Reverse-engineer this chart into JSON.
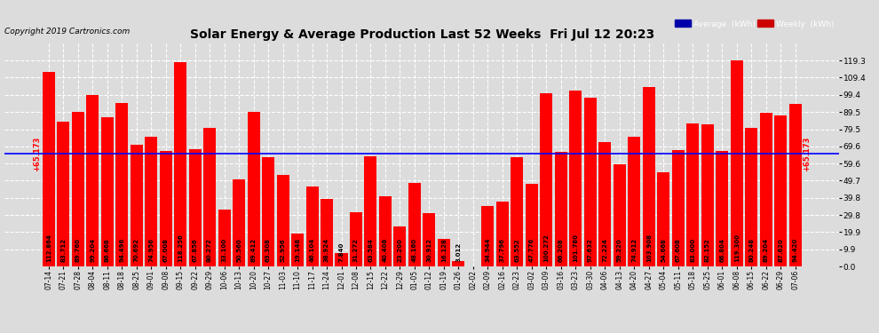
{
  "title": "Solar Energy & Average Production Last 52 Weeks  Fri Jul 12 20:23",
  "copyright": "Copyright 2019 Cartronics.com",
  "average_label": "Average  (kWh)",
  "weekly_label": "Weekly  (kWh)",
  "average_value": 65.173,
  "bar_color": "#FF0000",
  "avg_line_color": "#0000FF",
  "avg_label_color": "#FF0000",
  "background_color": "#DCDCDC",
  "grid_color": "#FFFFFF",
  "categories": [
    "07-14",
    "07-21",
    "07-28",
    "08-04",
    "08-11",
    "08-18",
    "08-25",
    "09-01",
    "09-08",
    "09-15",
    "09-22",
    "09-29",
    "10-06",
    "10-13",
    "10-20",
    "10-27",
    "11-03",
    "11-10",
    "11-17",
    "11-24",
    "12-01",
    "12-08",
    "12-15",
    "12-22",
    "12-29",
    "01-05",
    "01-12",
    "01-19",
    "01-26",
    "02-02",
    "02-09",
    "02-16",
    "02-23",
    "03-02",
    "03-09",
    "03-16",
    "03-23",
    "03-30",
    "04-06",
    "04-13",
    "04-20",
    "04-27",
    "05-04",
    "05-11",
    "05-18",
    "05-25",
    "06-01",
    "06-08",
    "06-15",
    "06-22",
    "06-29",
    "07-06"
  ],
  "values": [
    112.864,
    83.712,
    89.76,
    99.204,
    86.668,
    94.496,
    70.692,
    74.956,
    67.008,
    118.256,
    67.856,
    80.272,
    33.1,
    50.56,
    89.412,
    63.308,
    52.956,
    19.148,
    46.104,
    38.924,
    7.84,
    31.272,
    63.584,
    40.408,
    23.2,
    48.16,
    30.912,
    16.128,
    3.012,
    0.0,
    34.944,
    37.796,
    63.552,
    47.776,
    100.272,
    66.208,
    101.78,
    97.632,
    72.224,
    59.22,
    74.912,
    103.908,
    54.668,
    67.608,
    83.0,
    82.152,
    66.804,
    119.3,
    80.248,
    89.204,
    87.62,
    94.42
  ],
  "ylim": [
    0,
    129.3
  ],
  "yticks": [
    0.0,
    9.9,
    19.9,
    29.8,
    39.8,
    49.7,
    59.6,
    69.6,
    79.5,
    89.5,
    99.4,
    109.4,
    119.3
  ],
  "avg_annotation": "65.173"
}
